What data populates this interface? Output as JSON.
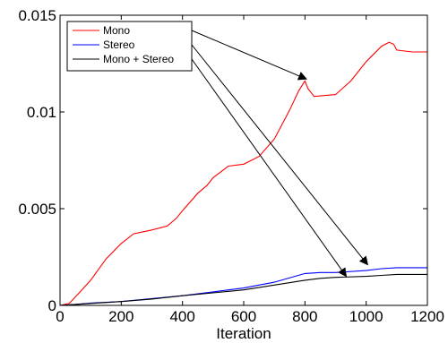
{
  "chart_data": {
    "type": "line",
    "xlabel": "Iteration",
    "ylabel": "",
    "xlim": [
      0,
      1200
    ],
    "ylim": [
      0,
      0.015
    ],
    "xticks": [
      {
        "value": 0,
        "label": "0"
      },
      {
        "value": 200,
        "label": "200"
      },
      {
        "value": 400,
        "label": "400"
      },
      {
        "value": 600,
        "label": "600"
      },
      {
        "value": 800,
        "label": "800"
      },
      {
        "value": 1000,
        "label": "1000"
      },
      {
        "value": 1200,
        "label": "1200"
      }
    ],
    "yticks": [
      {
        "value": 0,
        "label": "0"
      },
      {
        "value": 0.005,
        "label": "0.005"
      },
      {
        "value": 0.01,
        "label": "0.01"
      },
      {
        "value": 0.015,
        "label": "0.015"
      }
    ],
    "grid": false,
    "legend_position": "top-left",
    "series": [
      {
        "name": "Mono",
        "color": "#ff0000",
        "x": [
          0,
          30,
          60,
          100,
          150,
          200,
          240,
          270,
          300,
          350,
          380,
          400,
          450,
          480,
          500,
          550,
          600,
          650,
          700,
          750,
          780,
          800,
          810,
          830,
          900,
          950,
          1000,
          1050,
          1075,
          1090,
          1100,
          1150,
          1200
        ],
        "y": [
          0,
          0.0001,
          0.0006,
          0.0013,
          0.0024,
          0.0032,
          0.0037,
          0.0038,
          0.0039,
          0.0041,
          0.0045,
          0.0049,
          0.0058,
          0.0062,
          0.0066,
          0.0072,
          0.0073,
          0.0077,
          0.0086,
          0.0101,
          0.0111,
          0.0116,
          0.0112,
          0.0108,
          0.0109,
          0.0116,
          0.0126,
          0.0134,
          0.0136,
          0.0135,
          0.0132,
          0.0131,
          0.0131
        ]
      },
      {
        "name": "Stereo",
        "color": "#0000ff",
        "x": [
          0,
          50,
          100,
          200,
          300,
          400,
          500,
          600,
          700,
          800,
          850,
          900,
          1000,
          1050,
          1100,
          1150,
          1200
        ],
        "y": [
          0,
          5e-05,
          0.00012,
          0.0002,
          0.00035,
          0.0005,
          0.0007,
          0.0009,
          0.0012,
          0.00165,
          0.0017,
          0.0017,
          0.0018,
          0.0019,
          0.00195,
          0.00195,
          0.00195
        ]
      },
      {
        "name": "Mono + Stereo",
        "color": "#000000",
        "x": [
          0,
          50,
          100,
          200,
          300,
          400,
          500,
          600,
          700,
          800,
          850,
          900,
          1000,
          1050,
          1100,
          1150,
          1200
        ],
        "y": [
          0,
          5e-05,
          0.0001,
          0.0002,
          0.00033,
          0.0005,
          0.00065,
          0.0008,
          0.00105,
          0.0013,
          0.0014,
          0.00145,
          0.0015,
          0.00155,
          0.0016,
          0.0016,
          0.0016
        ]
      }
    ],
    "annotations": [
      {
        "type": "arrow",
        "from_series": "Mono",
        "to": {
          "x": 805,
          "y": 0.0117
        }
      },
      {
        "type": "arrow",
        "from_series": "Stereo",
        "to": {
          "x": 1005,
          "y": 0.0021
        }
      },
      {
        "type": "arrow",
        "from_series": "Mono + Stereo",
        "to": {
          "x": 935,
          "y": 0.0015
        }
      }
    ]
  }
}
